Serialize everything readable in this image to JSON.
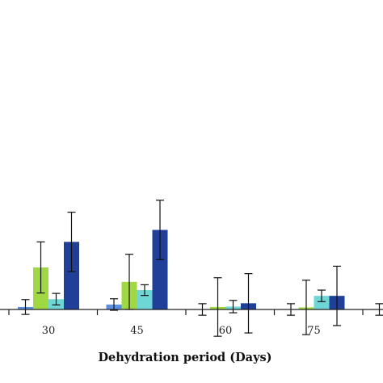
{
  "chart_data": {
    "type": "bar",
    "title": "",
    "xlabel": "Dehydration period (Days)",
    "ylabel": "",
    "categories": [
      "30",
      "45",
      "60",
      "75",
      ""
    ],
    "ylim": [
      -0.75,
      3.6
    ],
    "grid": false,
    "legend": "none",
    "series": [
      {
        "color": "#5b8fe0",
        "values": [
          0.06,
          0.12,
          0.0,
          0.0,
          0.0
        ],
        "errors": [
          0.18,
          0.14,
          0.14,
          0.14,
          0.14
        ]
      },
      {
        "color": "#9fd842",
        "values": [
          1.02,
          0.67,
          0.06,
          0.05,
          0.0
        ],
        "errors": [
          0.62,
          0.67,
          0.71,
          0.66,
          0.0
        ]
      },
      {
        "color": "#6fd6d6",
        "values": [
          0.25,
          0.47,
          0.07,
          0.33,
          0.0
        ],
        "errors": [
          0.14,
          0.13,
          0.15,
          0.14,
          0.0
        ]
      },
      {
        "color": "#1f3f98",
        "values": [
          1.64,
          1.93,
          0.15,
          0.33,
          0.0
        ],
        "errors": [
          0.72,
          0.72,
          0.72,
          0.72,
          0.0
        ]
      }
    ]
  },
  "colors": {
    "axis": "#222222",
    "errorbar": "#111111"
  }
}
